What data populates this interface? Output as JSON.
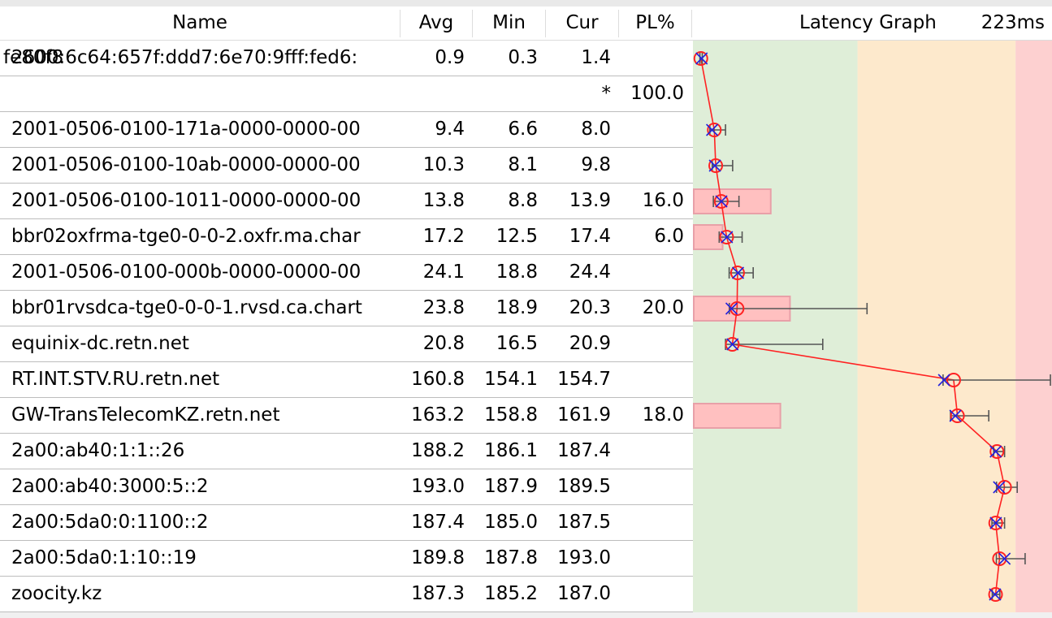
{
  "header": {
    "name": "Name",
    "avg": "Avg",
    "min": "Min",
    "cur": "Cur",
    "pl": "PL%",
    "graph_title": "Latency Graph",
    "graph_max": "223ms"
  },
  "colors": {
    "zone_good": "#dfeed8",
    "zone_warn": "#fde9cc",
    "zone_bad": "#fdd0d0",
    "loss_bar": "#ffc0c0",
    "loss_border": "#e8a0a8",
    "line": "#ff2222",
    "cross": "#2222dd",
    "whisker": "#555555"
  },
  "chart_data": {
    "type": "scatter",
    "title": "Latency Graph",
    "x_max_ms": 223,
    "zones_ms": [
      100,
      200
    ],
    "fields": [
      "avg",
      "min",
      "cur",
      "max",
      "pl"
    ]
  },
  "rows": [
    {
      "name": "2600:6c64:657f:ddd7:6e70:9fff:fed6:",
      "name_overlay": "fe80f8",
      "avg": "0.9",
      "min": "0.3",
      "cur": "1.4",
      "pl": "",
      "max": 1.8
    },
    {
      "name": "",
      "avg": "",
      "min": "",
      "cur": "*",
      "pl": "100.0"
    },
    {
      "name": "2001-0506-0100-171a-0000-0000-00",
      "avg": "9.4",
      "min": "6.6",
      "cur": "8.0",
      "pl": "",
      "max": 16.5
    },
    {
      "name": "2001-0506-0100-10ab-0000-0000-00",
      "avg": "10.3",
      "min": "8.1",
      "cur": "9.8",
      "pl": "",
      "max": 21
    },
    {
      "name": "2001-0506-0100-1011-0000-0000-00",
      "avg": "13.8",
      "min": "8.8",
      "cur": "13.9",
      "pl": "16.0",
      "max": 25
    },
    {
      "name": "bbr02oxfrma-tge0-0-0-2.oxfr.ma.char",
      "avg": "17.2",
      "min": "12.5",
      "cur": "17.4",
      "pl": "6.0",
      "max": 27
    },
    {
      "name": "2001-0506-0100-000b-0000-0000-00",
      "avg": "24.1",
      "min": "18.8",
      "cur": "24.4",
      "pl": "",
      "max": 34
    },
    {
      "name": "bbr01rvsdca-tge0-0-0-1.rvsd.ca.chart",
      "avg": "23.8",
      "min": "18.9",
      "cur": "20.3",
      "pl": "20.0",
      "max": 106
    },
    {
      "name": "equinix-dc.retn.net",
      "avg": "20.8",
      "min": "16.5",
      "cur": "20.9",
      "pl": "",
      "max": 78
    },
    {
      "name": "RT.INT.STV.RU.retn.net",
      "avg": "160.8",
      "min": "154.1",
      "cur": "154.7",
      "pl": "",
      "max": 222
    },
    {
      "name": "GW-TransTelecomKZ.retn.net",
      "avg": "163.2",
      "min": "158.8",
      "cur": "161.9",
      "pl": "18.0",
      "max": 183
    },
    {
      "name": "2a00:ab40:1:1::26",
      "avg": "188.2",
      "min": "186.1",
      "cur": "187.4",
      "pl": "",
      "max": 193
    },
    {
      "name": "2a00:ab40:3000:5::2",
      "avg": "193.0",
      "min": "187.9",
      "cur": "189.5",
      "pl": "",
      "max": 201
    },
    {
      "name": "2a00:5da0:0:1100::2",
      "avg": "187.4",
      "min": "185.0",
      "cur": "187.5",
      "pl": "",
      "max": 193
    },
    {
      "name": "2a00:5da0:1:10::19",
      "avg": "189.8",
      "min": "187.8",
      "cur": "193.0",
      "pl": "",
      "max": 206
    },
    {
      "name": "zoocity.kz",
      "avg": "187.3",
      "min": "185.2",
      "cur": "187.0",
      "pl": "",
      "max": 190
    }
  ]
}
